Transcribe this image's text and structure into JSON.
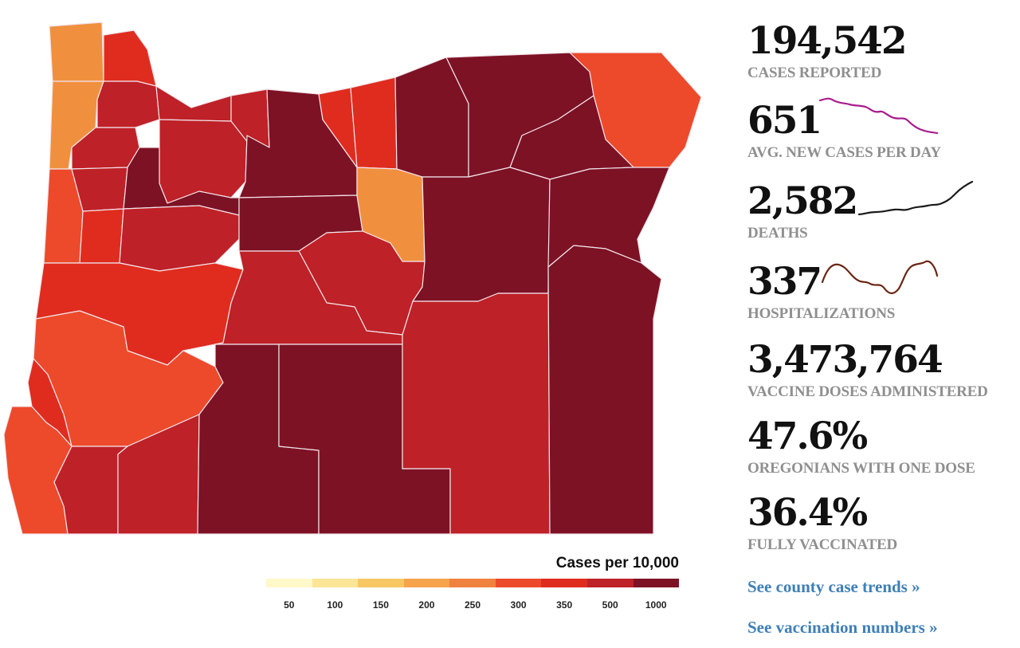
{
  "map": {
    "fill_colors": {
      "c1": "#f0903f",
      "c2": "#ec4a2b",
      "c3": "#df2c1f",
      "c4": "#be2127",
      "c5": "#7d1225"
    }
  },
  "legend": {
    "title": "Cases per 10,000",
    "colors": [
      "#fff8c9",
      "#fbe597",
      "#f7c763",
      "#f5a44c",
      "#f0823f",
      "#ec4a2b",
      "#df2c1f",
      "#be2127",
      "#7d1225"
    ],
    "ticks": [
      "50",
      "100",
      "150",
      "200",
      "250",
      "300",
      "350",
      "500",
      "1000"
    ]
  },
  "stats": {
    "cases": {
      "value": "194,542",
      "label": "CASES REPORTED"
    },
    "new_cases": {
      "value": "651",
      "label": "AVG. NEW CASES PER DAY",
      "spark_color": "#a81c8c"
    },
    "deaths": {
      "value": "2,582",
      "label": "DEATHS",
      "spark_color": "#1a1a1a"
    },
    "hospitalizations": {
      "value": "337",
      "label": "HOSPITALIZATIONS",
      "spark_color": "#6b2613"
    },
    "doses": {
      "value": "3,473,764",
      "label": "VACCINE DOSES ADMINISTERED"
    },
    "one_dose": {
      "value": "47.6%",
      "label": "OREGONIANS WITH ONE DOSE"
    },
    "fully": {
      "value": "36.4%",
      "label": "FULLY VACCINATED"
    }
  },
  "links": {
    "county_trends": "See county case trends »",
    "vaccination": "See vaccination numbers »"
  }
}
